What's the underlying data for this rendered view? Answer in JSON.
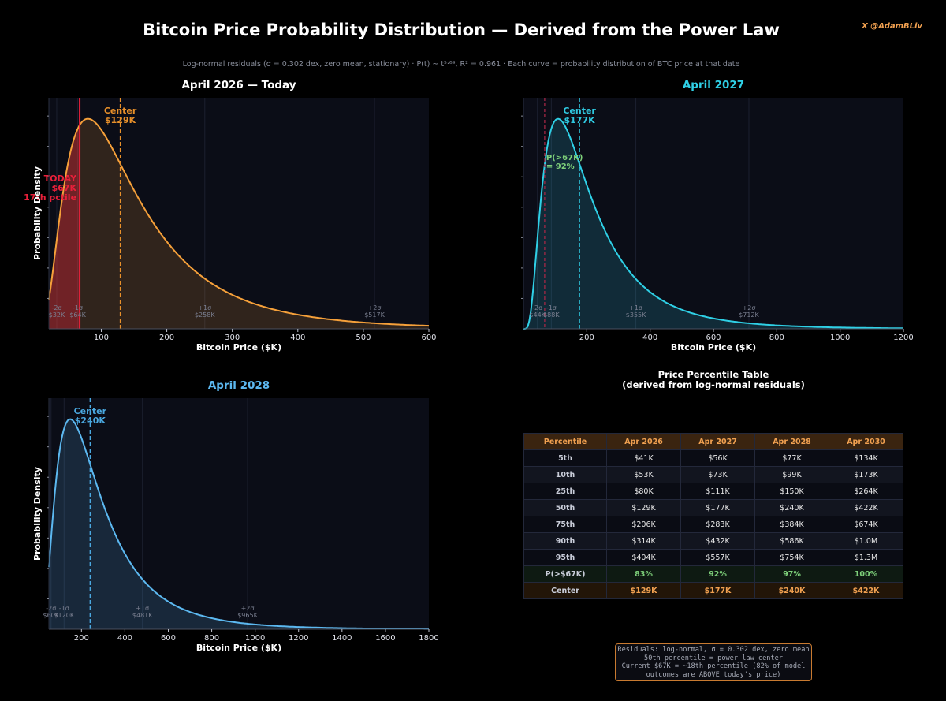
{
  "header": {
    "title": "Bitcoin Price Probability Distribution  —  Derived from the Power Law",
    "handle": "X  @AdamBLiv",
    "subtitle": "Log-normal residuals (σ = 0.302 dex, zero mean, stationary)  ·  P(t) ~ t⁵·⁶⁹, R² = 0.961  ·  Each curve = probability distribution of BTC price at that date"
  },
  "colors": {
    "background": "#000000",
    "plot_bg": "#0b0d17",
    "apr2026": "#f5a03a",
    "apr2027": "#2fd0e6",
    "apr2028": "#5cb8f0",
    "today": "#e8203a",
    "prob_green": "#7ed07a",
    "table_header_bg": "#3a2410"
  },
  "chart_data": [
    {
      "type": "area",
      "title": "April 2026 — Today",
      "xlabel": "Bitcoin Price ($K)",
      "ylabel": "Probability Density",
      "xlim": [
        20,
        600
      ],
      "xticks": [
        100,
        200,
        300,
        400,
        500,
        600
      ],
      "distribution": "log-normal",
      "median_k": 129,
      "sigma_dex": 0.302,
      "center_label": "Center",
      "center_value": "$129K",
      "today": {
        "value_k": 67,
        "label_lines": [
          "TODAY",
          "$67K",
          "17th pctile"
        ]
      },
      "sigma_markers": [
        {
          "value_k": 32,
          "label": "-2σ",
          "value": "$32K"
        },
        {
          "value_k": 64,
          "label": "-1σ",
          "value": "$64K"
        },
        {
          "value_k": 258,
          "label": "+1σ",
          "value": "$258K"
        },
        {
          "value_k": 517,
          "label": "+2σ",
          "value": "$517K"
        }
      ]
    },
    {
      "type": "area",
      "title": "April 2027",
      "xlabel": "Bitcoin Price ($K)",
      "ylabel": "",
      "xlim": [
        0,
        1200
      ],
      "xticks": [
        200,
        400,
        600,
        800,
        1000,
        1200
      ],
      "distribution": "log-normal",
      "median_k": 177,
      "sigma_dex": 0.302,
      "center_label": "Center",
      "center_value": "$177K",
      "today_value_k": 67,
      "prob_annotation_lines": [
        "P(>67K)",
        "= 92%"
      ],
      "sigma_markers": [
        {
          "value_k": 44,
          "label": "-2σ",
          "value": "$44K"
        },
        {
          "value_k": 88,
          "label": "-1σ",
          "value": "$88K"
        },
        {
          "value_k": 355,
          "label": "+1σ",
          "value": "$355K"
        },
        {
          "value_k": 712,
          "label": "+2σ",
          "value": "$712K"
        }
      ]
    },
    {
      "type": "area",
      "title": "April 2028",
      "xlabel": "Bitcoin Price ($K)",
      "ylabel": "Probability Density",
      "xlim": [
        50,
        1800
      ],
      "xticks": [
        200,
        400,
        600,
        800,
        1000,
        1200,
        1400,
        1600,
        1800
      ],
      "distribution": "log-normal",
      "median_k": 240,
      "sigma_dex": 0.302,
      "center_label": "Center",
      "center_value": "$240K",
      "sigma_markers": [
        {
          "value_k": 60,
          "label": "-2σ",
          "value": "$60K"
        },
        {
          "value_k": 120,
          "label": "-1σ",
          "value": "$120K"
        },
        {
          "value_k": 481,
          "label": "+1σ",
          "value": "$481K"
        },
        {
          "value_k": 965,
          "label": "+2σ",
          "value": "$965K"
        }
      ]
    }
  ],
  "table": {
    "title_line1": "Price Percentile Table",
    "title_line2": "(derived from log-normal residuals)",
    "headers": [
      "Percentile",
      "Apr 2026",
      "Apr 2027",
      "Apr 2028",
      "Apr 2030"
    ],
    "rows": [
      [
        "5th",
        "$41K",
        "$56K",
        "$77K",
        "$134K"
      ],
      [
        "10th",
        "$53K",
        "$73K",
        "$99K",
        "$173K"
      ],
      [
        "25th",
        "$80K",
        "$111K",
        "$150K",
        "$264K"
      ],
      [
        "50th",
        "$129K",
        "$177K",
        "$240K",
        "$422K"
      ],
      [
        "75th",
        "$206K",
        "$283K",
        "$384K",
        "$674K"
      ],
      [
        "90th",
        "$314K",
        "$432K",
        "$586K",
        "$1.0M"
      ],
      [
        "95th",
        "$404K",
        "$557K",
        "$754K",
        "$1.3M"
      ],
      [
        "P(>$67K)",
        "83%",
        "92%",
        "97%",
        "100%"
      ],
      [
        "Center",
        "$129K",
        "$177K",
        "$240K",
        "$422K"
      ]
    ]
  },
  "note": {
    "lines": [
      "Residuals: log-normal, σ = 0.302 dex, zero mean",
      "50th percentile = power law center",
      "Current $67K = ~18th percentile (82% of model",
      "outcomes are ABOVE today's price)"
    ]
  }
}
